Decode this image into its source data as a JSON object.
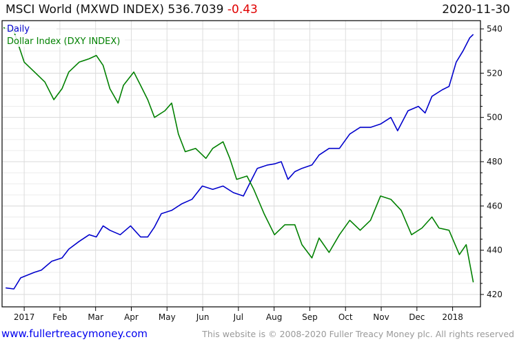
{
  "header": {
    "title": "MSCI World  (MXWD INDEX) 536.7039",
    "change": "-0.43",
    "date": "2020-11-30"
  },
  "footer": {
    "site": "www.fullertreacymoney.com",
    "copyright": "This website is © 2008-2020 Fuller Treacy Money plc. All rights reserved"
  },
  "chart_data": {
    "type": "line",
    "frequency_label": "Daily",
    "xlabel": "",
    "ylabel": "",
    "x_unit": "months since 2017-01-01",
    "xlim": [
      -0.62,
      12.78
    ],
    "ylim": [
      416,
      543
    ],
    "y_ticks": [
      420,
      440,
      460,
      480,
      500,
      520,
      540
    ],
    "x_tick_labels": [
      "2017",
      "Feb",
      "Mar",
      "Apr",
      "May",
      "Jun",
      "Jul",
      "Aug",
      "Sep",
      "Oct",
      "Nov",
      "Dec",
      "2018"
    ],
    "grid": true,
    "legend_placement": "top-left",
    "series": [
      {
        "name": "MSCI World (MXWD INDEX)",
        "color": "#0000cc",
        "x": [
          -0.52,
          -0.29,
          -0.1,
          0.29,
          0.48,
          0.77,
          1.06,
          1.25,
          1.54,
          1.82,
          2.02,
          2.21,
          2.4,
          2.69,
          2.98,
          3.26,
          3.46,
          3.65,
          3.84,
          4.13,
          4.42,
          4.7,
          4.99,
          5.28,
          5.57,
          5.86,
          6.14,
          6.34,
          6.53,
          6.82,
          7.01,
          7.2,
          7.39,
          7.58,
          7.78,
          8.06,
          8.26,
          8.54,
          8.83,
          9.12,
          9.41,
          9.7,
          9.98,
          10.27,
          10.46,
          10.75,
          11.04,
          11.23,
          11.42,
          11.71,
          11.9,
          12.1,
          12.29,
          12.48,
          12.58
        ],
        "values": [
          423,
          422.5,
          427.5,
          430,
          431,
          435,
          436.5,
          440.5,
          444,
          447,
          446,
          451,
          449,
          447,
          451,
          446,
          446,
          450.5,
          456.5,
          458,
          461,
          463,
          469,
          467.5,
          469,
          466,
          464.5,
          471,
          477,
          478.5,
          479,
          480,
          472,
          475.5,
          477,
          478.5,
          483,
          486,
          486,
          492.5,
          495.5,
          495.5,
          497,
          500,
          494,
          503,
          505,
          502,
          509.5,
          512.5,
          514,
          525,
          530,
          536,
          537.5
        ]
      },
      {
        "name": "Dollar Index (DXY INDEX)",
        "color": "#008000",
        "x": [
          -0.58,
          -0.29,
          0,
          0.29,
          0.58,
          0.83,
          1.06,
          1.25,
          1.54,
          1.82,
          2.02,
          2.21,
          2.4,
          2.63,
          2.78,
          3.07,
          3.26,
          3.46,
          3.65,
          3.94,
          4.13,
          4.32,
          4.51,
          4.8,
          5.09,
          5.28,
          5.57,
          5.76,
          5.95,
          6.24,
          6.43,
          6.72,
          7.01,
          7.3,
          7.58,
          7.78,
          8.06,
          8.26,
          8.54,
          8.83,
          9.12,
          9.41,
          9.7,
          9.98,
          10.27,
          10.56,
          10.85,
          11.14,
          11.42,
          11.62,
          11.9,
          12.19,
          12.38,
          12.58
        ],
        "values": [
          540.6,
          539,
          525,
          520.5,
          516,
          508,
          513,
          520.5,
          525,
          526.5,
          528,
          523.5,
          513,
          506.5,
          514.5,
          520.5,
          514.5,
          508,
          500,
          503,
          506.5,
          492.5,
          484.5,
          486,
          481.5,
          486,
          489,
          481.5,
          472,
          473.5,
          467.5,
          456.5,
          447,
          451.5,
          451.5,
          442.5,
          436.5,
          445.5,
          439,
          447,
          453.5,
          449,
          453.5,
          464.5,
          463,
          458,
          447,
          450,
          455,
          450,
          449,
          438,
          442.5,
          425.5
        ]
      }
    ]
  }
}
